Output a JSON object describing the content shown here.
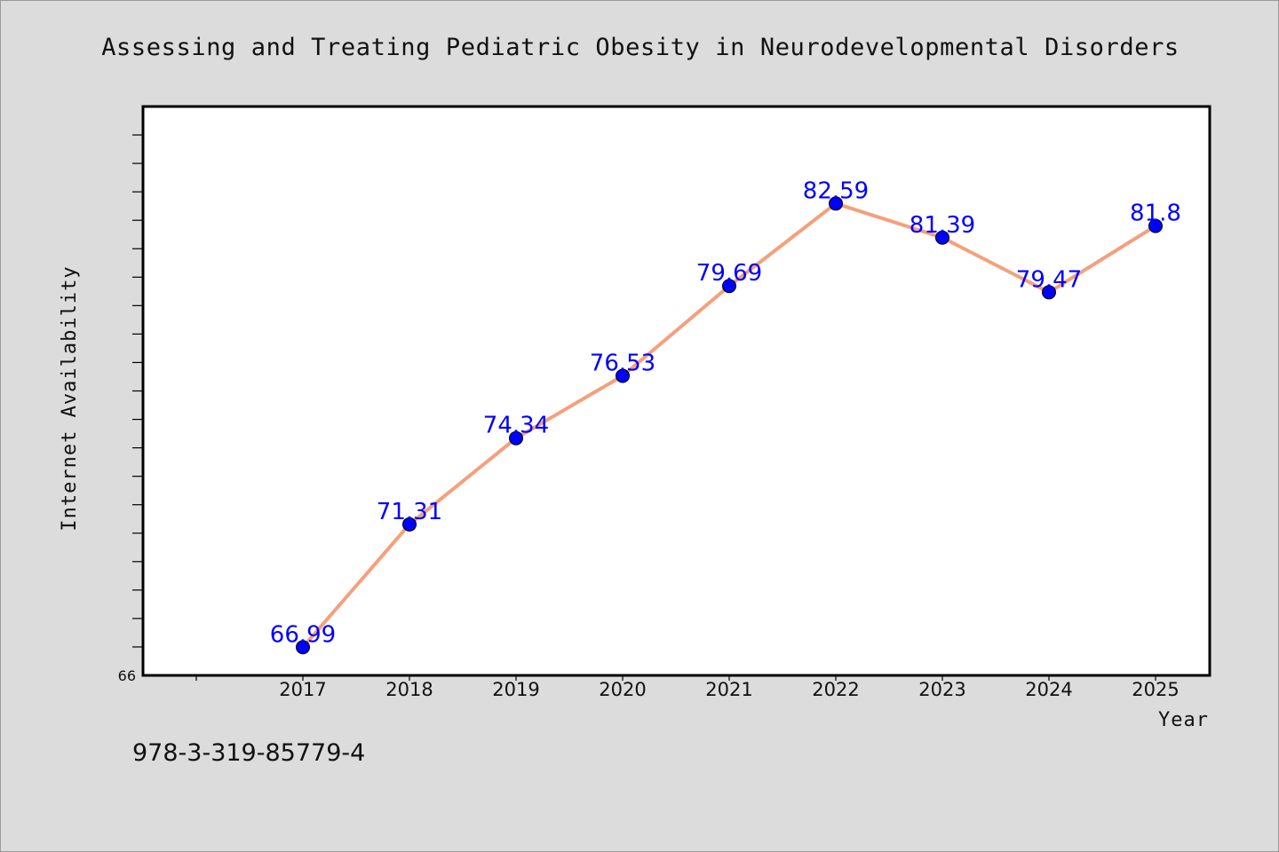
{
  "colors": {
    "background": "#dcdcdc",
    "plot_background": "#ffffff",
    "line": "#f4a07c",
    "marker": "#0000ff",
    "data_label": "#0000ff"
  },
  "footer": {
    "isbn": "978-3-319-85779-4"
  },
  "chart_data": {
    "type": "line",
    "title": "Assessing and Treating Pediatric Obesity in Neurodevelopmental Disorders",
    "xlabel": "Year",
    "ylabel": "Internet Availability",
    "categories": [
      "2017",
      "2018",
      "2019",
      "2020",
      "2021",
      "2022",
      "2023",
      "2024",
      "2025"
    ],
    "series": [
      {
        "values": [
          66.99,
          71.31,
          74.34,
          76.53,
          79.69,
          82.59,
          81.39,
          79.47,
          81.8
        ],
        "labels": [
          "66.99",
          "71.31",
          "74.34",
          "76.53",
          "79.69",
          "82.59",
          "81.39",
          "79.47",
          "81.8"
        ]
      }
    ],
    "yticks": [
      "66"
    ],
    "ylim": [
      66,
      86
    ],
    "grid": false,
    "legend": "none"
  }
}
